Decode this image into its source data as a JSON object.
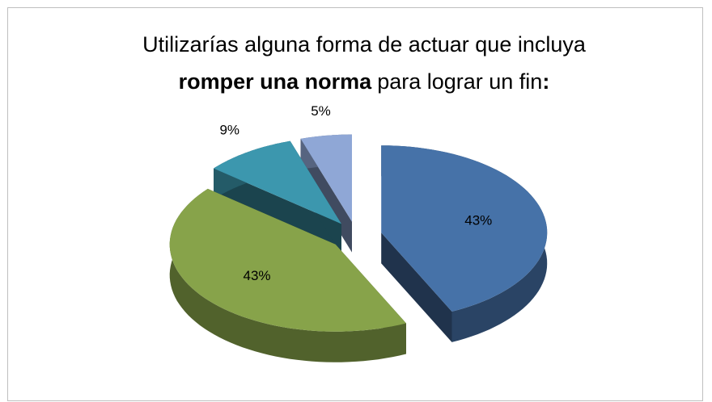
{
  "chart_data": {
    "type": "pie",
    "title": [
      {
        "text": "Utilizarías alguna forma de actuar que incluya",
        "bold": false,
        "line": 1
      },
      {
        "text": "romper una norma",
        "bold": true,
        "line": 2
      },
      {
        "text": "para lograr un fin",
        "bold": false,
        "line": 2
      },
      {
        "text": ":",
        "bold": true,
        "line": 2
      }
    ],
    "values": [
      43,
      43,
      9,
      5
    ],
    "value_labels": [
      "43%",
      "43%",
      "9%",
      "5%"
    ],
    "colors": [
      "#4672a8",
      "#87a34a",
      "#3c97ae",
      "#8fa7d6"
    ],
    "exploded": true,
    "three_d": true
  }
}
